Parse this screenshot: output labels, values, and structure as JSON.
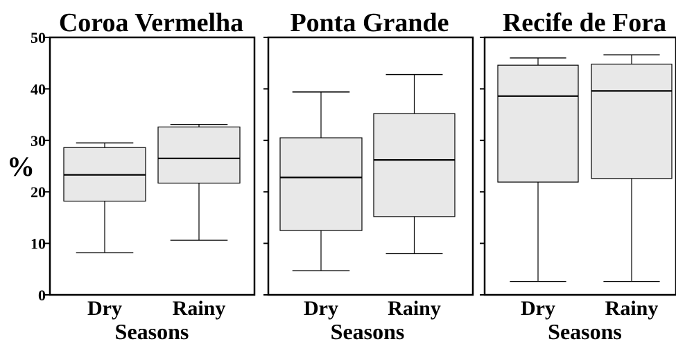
{
  "chart_data": {
    "type": "boxplot",
    "ylabel": "%",
    "ylim": [
      0,
      50
    ],
    "yticks": [
      "0",
      "10",
      "20",
      "30",
      "40",
      "50"
    ],
    "grid": false,
    "panels": [
      {
        "title": "Coroa Vermelha",
        "xlabel": "Seasons",
        "categories": [
          "Dry",
          "Rainy"
        ],
        "boxes": [
          {
            "min": 8.2,
            "q1": 18.2,
            "median": 23.3,
            "q3": 28.6,
            "max": 29.5
          },
          {
            "min": 10.6,
            "q1": 21.7,
            "median": 26.5,
            "q3": 32.6,
            "max": 33.1
          }
        ]
      },
      {
        "title": "Ponta Grande",
        "xlabel": "Seasons",
        "categories": [
          "Dry",
          "Rainy"
        ],
        "boxes": [
          {
            "min": 4.7,
            "q1": 12.5,
            "median": 22.8,
            "q3": 30.5,
            "max": 39.4
          },
          {
            "min": 8.0,
            "q1": 15.2,
            "median": 26.2,
            "q3": 35.2,
            "max": 42.8
          }
        ]
      },
      {
        "title": "Recife de Fora",
        "xlabel": "Seasons",
        "categories": [
          "Dry",
          "Rainy"
        ],
        "boxes": [
          {
            "min": 2.6,
            "q1": 21.9,
            "median": 38.6,
            "q3": 44.6,
            "max": 46.0
          },
          {
            "min": 2.6,
            "q1": 22.6,
            "median": 39.6,
            "q3": 44.8,
            "max": 46.6
          }
        ]
      }
    ],
    "colors": {
      "box_fill": "#e8e8e8",
      "stroke": "#000000"
    }
  }
}
